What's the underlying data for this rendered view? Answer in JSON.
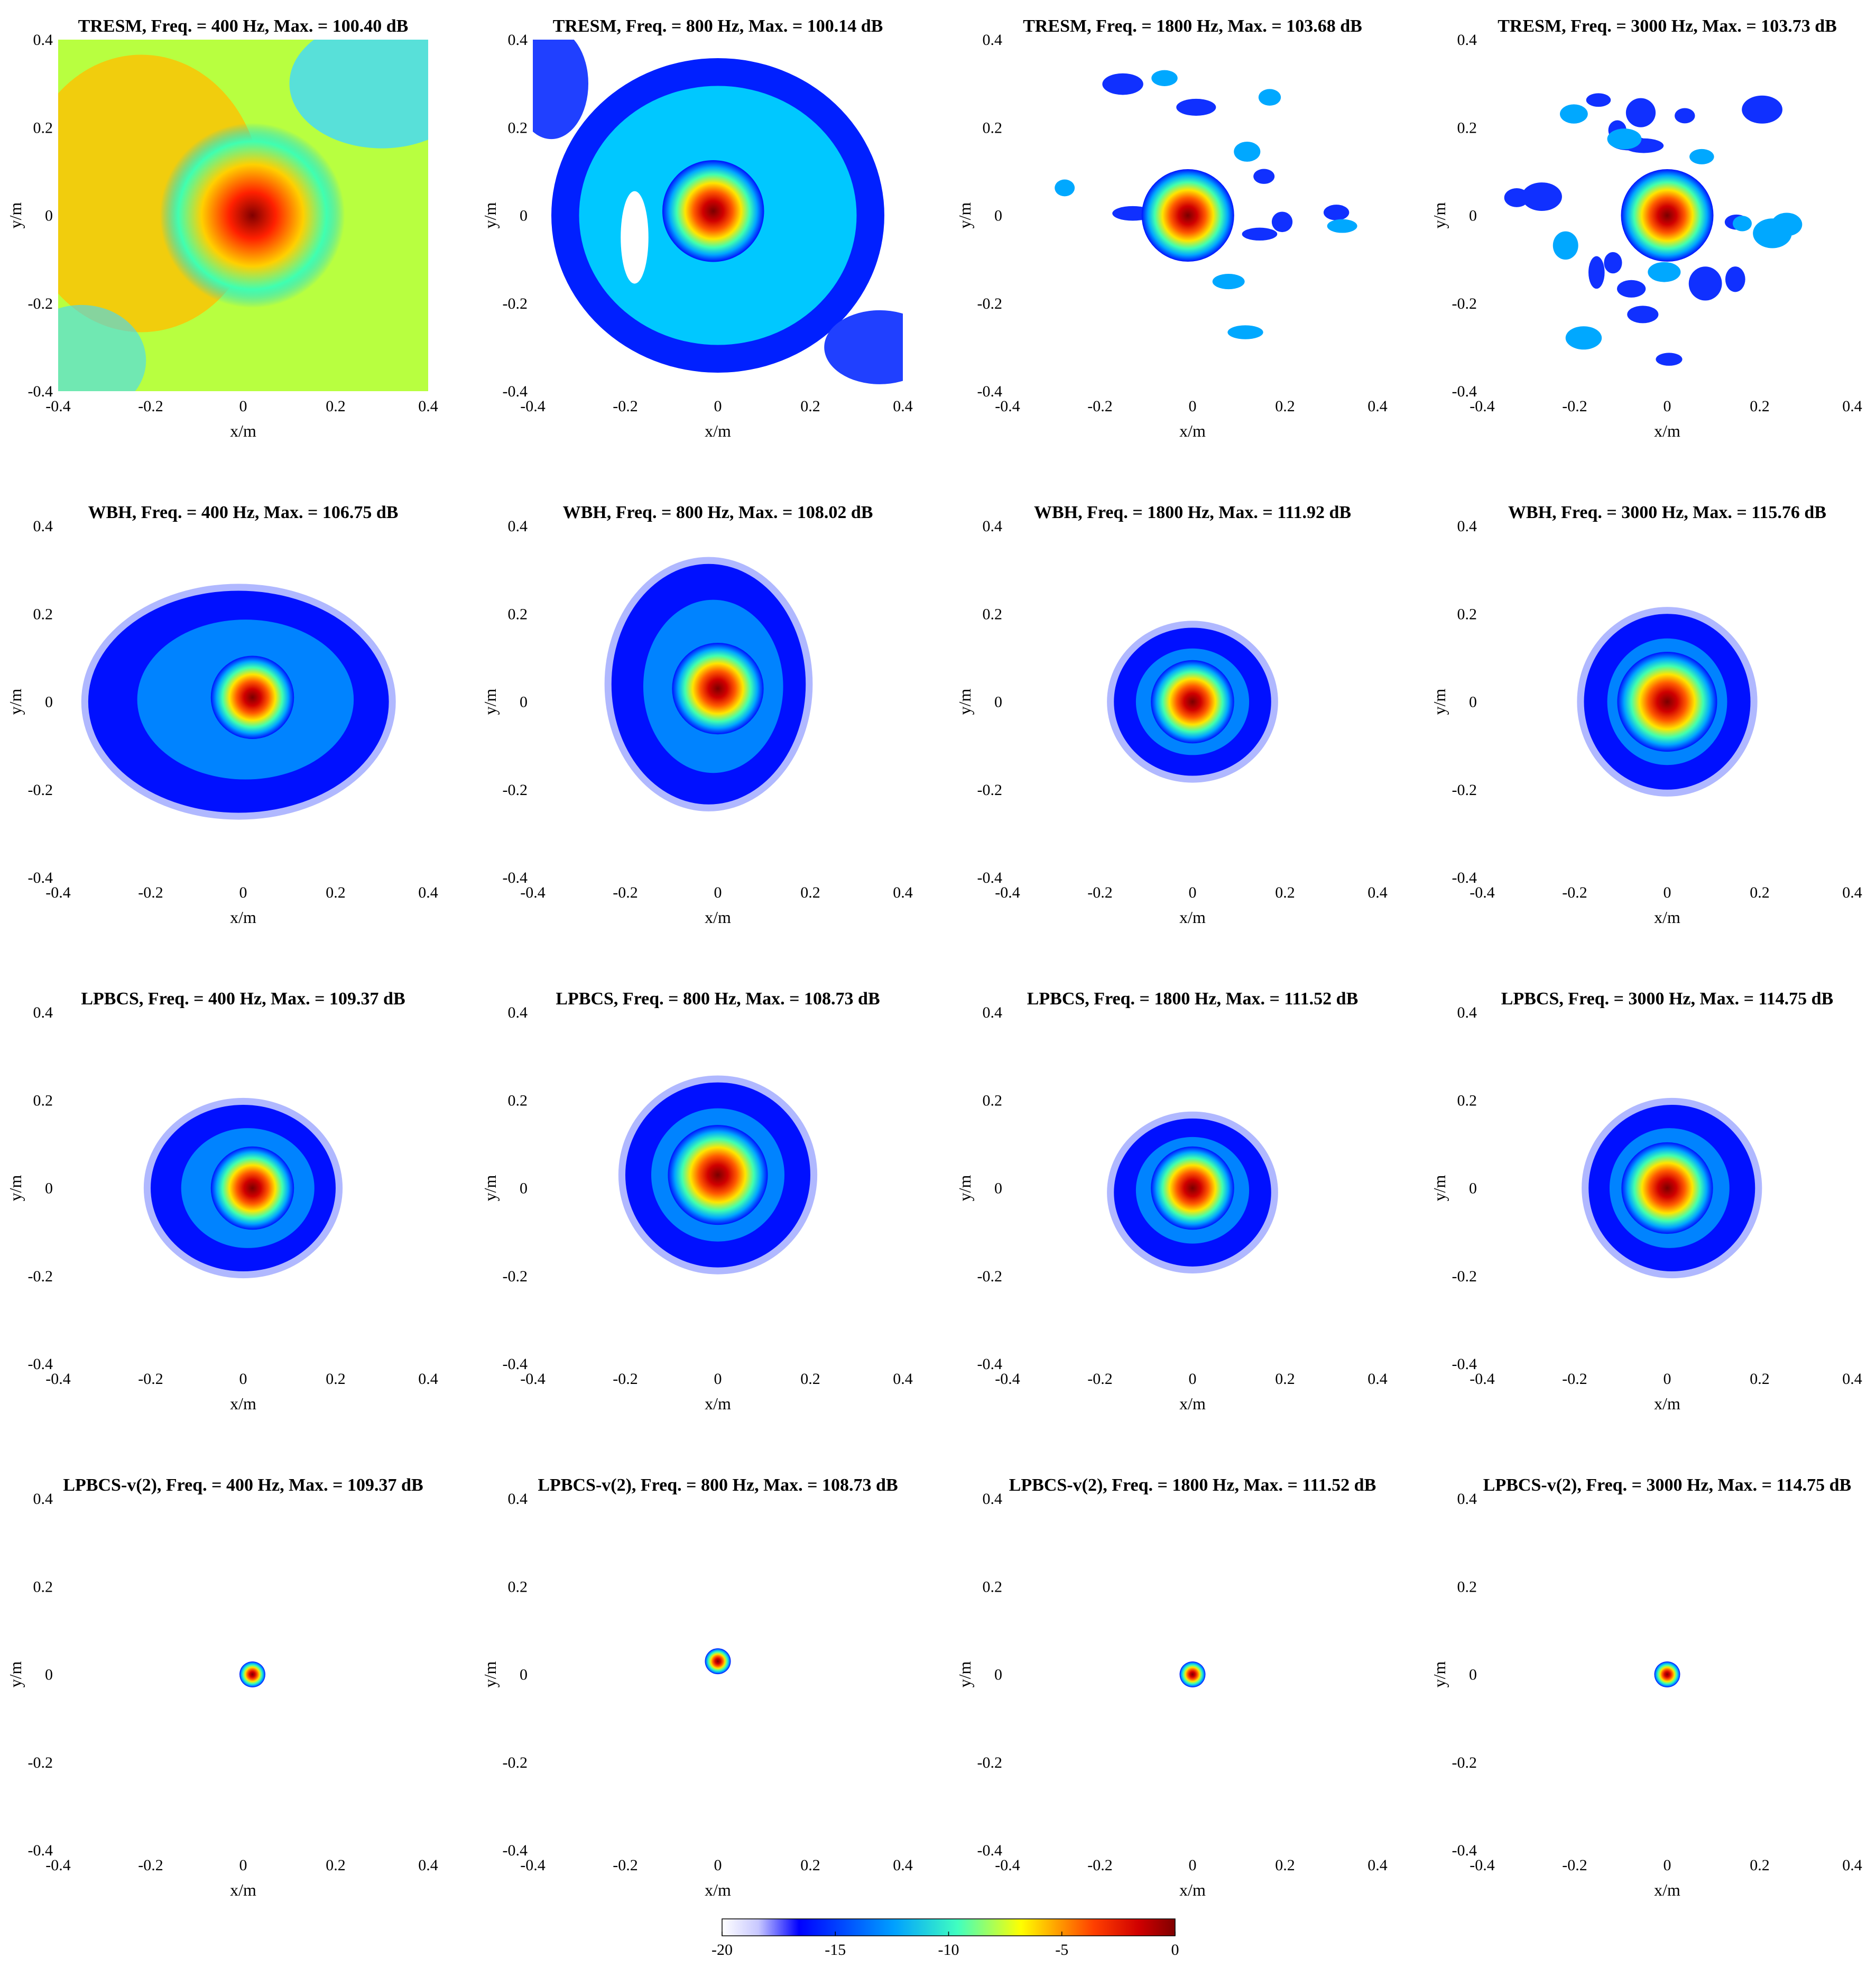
{
  "chart_data": {
    "type": "heatmap",
    "layout": {
      "rows": 4,
      "cols": 4
    },
    "axes": {
      "xlabel": "x/m",
      "ylabel": "y/m",
      "xlim": [
        -0.4,
        0.4
      ],
      "ylim": [
        -0.4,
        0.4
      ],
      "xticks": [
        "-0.4",
        "-0.2",
        "0",
        "0.2",
        "0.4"
      ],
      "yticks": [
        "0.4",
        "0.2",
        "0",
        "-0.2",
        "-0.4"
      ]
    },
    "colorbar": {
      "range": [
        -20,
        0
      ],
      "ticks": [
        "-20",
        "-15",
        "-10",
        "-5",
        "0"
      ],
      "colormap": "jet (white at minimum)"
    },
    "panels": [
      {
        "title": "TRESM,  Freq. = 400 Hz,  Max. = 100.40 dB",
        "method": "TRESM",
        "freq_hz": 400,
        "max_db": 100.4,
        "peak": [
          0.02,
          0.0
        ],
        "pattern": "broad"
      },
      {
        "title": "TRESM,  Freq. = 800 Hz,  Max. = 100.14 dB",
        "method": "TRESM",
        "freq_hz": 800,
        "max_db": 100.14,
        "peak": [
          -0.01,
          0.01
        ],
        "pattern": "ring"
      },
      {
        "title": "TRESM,  Freq. = 1800 Hz,  Max. = 103.68 dB",
        "method": "TRESM",
        "freq_hz": 1800,
        "max_db": 103.68,
        "peak": [
          -0.01,
          0.0
        ],
        "pattern": "sidelobes"
      },
      {
        "title": "TRESM,  Freq. = 3000 Hz,  Max. = 103.73 dB",
        "method": "TRESM",
        "freq_hz": 3000,
        "max_db": 103.73,
        "peak": [
          0.0,
          0.0
        ],
        "pattern": "speckle"
      },
      {
        "title": "WBH,  Freq. = 400 Hz,  Max. = 106.75 dB",
        "method": "WBH",
        "freq_hz": 400,
        "max_db": 106.75,
        "peak": [
          0.02,
          0.01
        ],
        "pattern": "blob"
      },
      {
        "title": "WBH,  Freq. = 800 Hz,  Max. = 108.02 dB",
        "method": "WBH",
        "freq_hz": 800,
        "max_db": 108.02,
        "peak": [
          0.0,
          0.03
        ],
        "pattern": "blob"
      },
      {
        "title": "WBH,  Freq. = 1800 Hz,  Max. = 111.92 dB",
        "method": "WBH",
        "freq_hz": 1800,
        "max_db": 111.92,
        "peak": [
          0.0,
          0.0
        ],
        "pattern": "blob"
      },
      {
        "title": "WBH,  Freq. = 3000 Hz,  Max. = 115.76 dB",
        "method": "WBH",
        "freq_hz": 3000,
        "max_db": 115.76,
        "peak": [
          0.0,
          0.0
        ],
        "pattern": "blob"
      },
      {
        "title": "LPBCS,  Freq. = 400 Hz,  Max. = 109.37 dB",
        "method": "LPBCS",
        "freq_hz": 400,
        "max_db": 109.37,
        "peak": [
          0.02,
          0.0
        ],
        "pattern": "blob"
      },
      {
        "title": "LPBCS,  Freq. = 800 Hz,  Max. = 108.73 dB",
        "method": "LPBCS",
        "freq_hz": 800,
        "max_db": 108.73,
        "peak": [
          0.0,
          0.03
        ],
        "pattern": "blob"
      },
      {
        "title": "LPBCS,  Freq. = 1800 Hz,  Max. = 111.52 dB",
        "method": "LPBCS",
        "freq_hz": 1800,
        "max_db": 111.52,
        "peak": [
          0.0,
          0.0
        ],
        "pattern": "blob"
      },
      {
        "title": "LPBCS,  Freq. = 3000 Hz,  Max. = 114.75 dB",
        "method": "LPBCS",
        "freq_hz": 3000,
        "max_db": 114.75,
        "peak": [
          0.0,
          0.0
        ],
        "pattern": "blob"
      },
      {
        "title": "LPBCS-v(2),  Freq. = 400 Hz,  Max. = 109.37 dB",
        "method": "LPBCS-v(2)",
        "freq_hz": 400,
        "max_db": 109.37,
        "peak": [
          0.02,
          0.0
        ],
        "pattern": "point"
      },
      {
        "title": "LPBCS-v(2),  Freq. = 800 Hz,  Max. = 108.73 dB",
        "method": "LPBCS-v(2)",
        "freq_hz": 800,
        "max_db": 108.73,
        "peak": [
          0.0,
          0.03
        ],
        "pattern": "point"
      },
      {
        "title": "LPBCS-v(2),  Freq. = 1800 Hz,  Max. = 111.52 dB",
        "method": "LPBCS-v(2)",
        "freq_hz": 1800,
        "max_db": 111.52,
        "peak": [
          0.0,
          0.0
        ],
        "pattern": "point"
      },
      {
        "title": "LPBCS-v(2),  Freq. = 3000 Hz,  Max. = 114.75 dB",
        "method": "LPBCS-v(2)",
        "freq_hz": 3000,
        "max_db": 114.75,
        "peak": [
          0.0,
          0.0
        ],
        "pattern": "point"
      }
    ]
  }
}
